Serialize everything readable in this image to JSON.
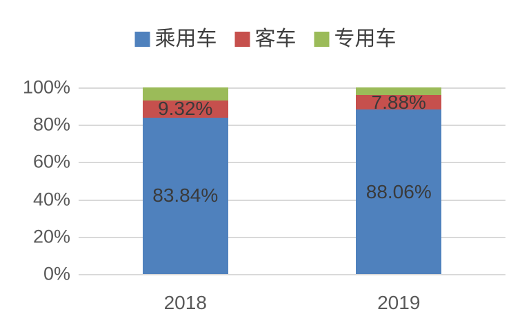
{
  "chart_data": {
    "type": "bar",
    "subtype": "stacked-100-percent",
    "title": "",
    "xlabel": "",
    "ylabel": "",
    "categories": [
      "2018",
      "2019"
    ],
    "series": [
      {
        "name": "乘用车",
        "color": "#4F81BD",
        "values": [
          83.84,
          88.06
        ],
        "labels": [
          "83.84%",
          "88.06%"
        ],
        "show_label": true
      },
      {
        "name": "客车",
        "color": "#C6504D",
        "values": [
          9.32,
          7.88
        ],
        "labels": [
          "9.32%",
          "7.88%"
        ],
        "show_label": true
      },
      {
        "name": "专用车",
        "color": "#9BBB59",
        "values": [
          6.84,
          4.06
        ],
        "labels": [
          "",
          ""
        ],
        "show_label": false
      }
    ],
    "yticks": [
      {
        "value": 0,
        "label": "0%"
      },
      {
        "value": 20,
        "label": "20%"
      },
      {
        "value": 40,
        "label": "40%"
      },
      {
        "value": 60,
        "label": "60%"
      },
      {
        "value": 80,
        "label": "80%"
      },
      {
        "value": 100,
        "label": "100%"
      }
    ],
    "ylim": [
      0,
      100
    ],
    "grid": true,
    "legend_position": "top"
  },
  "colors": {
    "gridline": "#D9D9D9",
    "axis_text": "#595959",
    "data_label_text": "#3A3A3A",
    "background": "#FFFFFF"
  }
}
